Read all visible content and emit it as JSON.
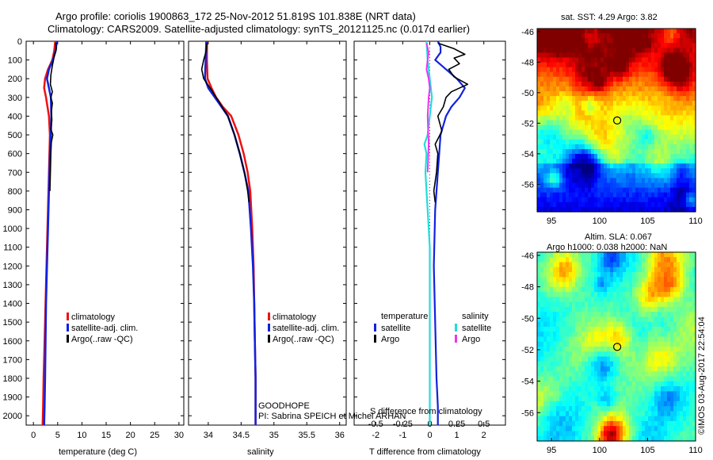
{
  "title_line1": "Argo profile: coriolis 1900863_172 25-Nov-2012 51.819S 101.838E (NRT data)",
  "title_line2": "Climatology: CARS2009. Satellite-adjusted climatology: synTS_20121125.nc (0.017d earlier)",
  "colors": {
    "climatology": "#ee1111",
    "satellite": "#1122dd",
    "argo": "#000000",
    "sat_salinity": "#22dddd",
    "argo_salinity": "#ee33ee"
  },
  "chart_data": [
    {
      "type": "line",
      "name": "temperature-profile",
      "xlabel": "temperature (deg C)",
      "ylabel": "",
      "xlim": [
        -1.5,
        31
      ],
      "ylim": [
        2050,
        0
      ],
      "xticks": [
        0,
        5,
        10,
        15,
        20,
        25,
        30
      ],
      "yticks": [
        0,
        100,
        200,
        300,
        400,
        500,
        600,
        700,
        800,
        900,
        1000,
        1100,
        1200,
        1300,
        1400,
        1500,
        1600,
        1700,
        1800,
        1900,
        2000
      ],
      "legend": [
        "climatology",
        "satellite-adj. clim.",
        "Argo(..raw -QC)"
      ],
      "series": [
        {
          "name": "climatology",
          "x": [
            4.5,
            4.3,
            3.9,
            3.0,
            2.4,
            2.2,
            2.6,
            3.2,
            3.4,
            3.3,
            3.1,
            2.9,
            2.7,
            2.5,
            2.3,
            2.1,
            2.0,
            1.9
          ],
          "y": [
            0,
            50,
            100,
            150,
            200,
            250,
            300,
            400,
            500,
            600,
            800,
            1000,
            1200,
            1400,
            1600,
            1800,
            1950,
            2050
          ]
        },
        {
          "name": "satellite-adj. clim.",
          "x": [
            4.8,
            4.6,
            4.0,
            3.2,
            2.8,
            3.2,
            3.6,
            3.7,
            3.6,
            3.4,
            3.2,
            3.0,
            2.8,
            2.6,
            2.5,
            2.4,
            2.3,
            2.2
          ],
          "y": [
            0,
            50,
            100,
            150,
            200,
            250,
            300,
            400,
            500,
            600,
            800,
            1000,
            1200,
            1400,
            1600,
            1800,
            1950,
            2050
          ]
        },
        {
          "name": "Argo",
          "x": [
            4.6,
            4.7,
            4.3,
            3.9,
            3.6,
            3.5,
            3.9,
            3.6,
            3.9,
            3.7,
            3.8,
            3.6,
            4.0,
            3.7,
            3.6,
            3.5,
            3.4
          ],
          "y": [
            10,
            40,
            80,
            130,
            180,
            230,
            270,
            300,
            330,
            380,
            420,
            470,
            500,
            540,
            600,
            700,
            800
          ]
        }
      ]
    },
    {
      "type": "line",
      "name": "salinity-profile",
      "xlabel": "salinity",
      "ylabel": "",
      "xlim": [
        33.7,
        36.1
      ],
      "ylim": [
        2050,
        0
      ],
      "xticks": [
        34,
        34.5,
        35,
        35.5,
        36
      ],
      "xticklabels": [
        "34",
        "34.5",
        "35",
        "35.5",
        "36"
      ],
      "legend": [
        "climatology",
        "satellite-adj. clim.",
        "Argo(..raw -QC)"
      ],
      "annotation": [
        "GOODHOPE",
        "PI: Sabrina SPEICH et Michel ARHAN"
      ],
      "series": [
        {
          "name": "climatology",
          "x": [
            33.98,
            33.98,
            33.99,
            34.05,
            34.12,
            34.22,
            34.35,
            34.46,
            34.54,
            34.6,
            34.64,
            34.67,
            34.69,
            34.7,
            34.71,
            34.72,
            34.72
          ],
          "y": [
            0,
            100,
            200,
            250,
            300,
            350,
            400,
            500,
            600,
            700,
            800,
            1000,
            1200,
            1400,
            1600,
            1800,
            2050
          ]
        },
        {
          "name": "satellite-adj. clim.",
          "x": [
            33.97,
            33.96,
            33.95,
            34.0,
            34.1,
            34.2,
            34.3,
            34.4,
            34.48,
            34.55,
            34.61,
            34.65,
            34.68,
            34.7,
            34.71,
            34.72,
            34.72
          ],
          "y": [
            0,
            100,
            200,
            250,
            300,
            350,
            400,
            500,
            600,
            700,
            800,
            1000,
            1200,
            1400,
            1600,
            1800,
            2050
          ]
        },
        {
          "name": "Argo",
          "x": [
            33.98,
            33.97,
            33.93,
            33.9,
            33.93,
            33.99,
            34.05,
            34.1,
            34.16,
            34.21,
            34.3,
            34.4,
            34.48,
            34.55,
            34.6,
            34.62
          ],
          "y": [
            10,
            50,
            100,
            150,
            200,
            230,
            260,
            290,
            320,
            350,
            400,
            500,
            600,
            700,
            800,
            860
          ]
        }
      ]
    },
    {
      "type": "line",
      "name": "difference-profile",
      "xlabel": "T difference from climatology",
      "x2label": "S difference from climatology",
      "xlim": [
        -2.8,
        2.8
      ],
      "ylim": [
        2050,
        0
      ],
      "xticks": [
        -2,
        -1,
        0,
        1,
        2
      ],
      "x2ticks": [
        -0.5,
        -0.25,
        0,
        0.25,
        0.5
      ],
      "x2ticklabels": [
        "-0.5",
        "-0.25",
        "0",
        "0.25",
        "0.5"
      ],
      "legend_groups": [
        {
          "title": "temperature",
          "items": [
            "satellite",
            "Argo"
          ]
        },
        {
          "title": "salinity",
          "items": [
            "satellite",
            "Argo"
          ]
        }
      ],
      "series": [
        {
          "name": "temperature satellite",
          "x": [
            0.3,
            0.4,
            0.4,
            0.2,
            0.6,
            1.0,
            1.3,
            1.1,
            0.8,
            0.6,
            0.4,
            0.3,
            0.2,
            0.15,
            0.2,
            0.25,
            0.3,
            0.3
          ],
          "y": [
            0,
            30,
            60,
            100,
            150,
            200,
            250,
            300,
            350,
            400,
            500,
            700,
            900,
            1200,
            1500,
            1800,
            1950,
            2050
          ]
        },
        {
          "name": "temperature Argo",
          "x": [
            0.3,
            0.9,
            1.3,
            0.9,
            1.1,
            0.7,
            0.9,
            1.4,
            0.8,
            0.6,
            0.5,
            0.3,
            0.45,
            0.2,
            0.3,
            0.25,
            0.15,
            0.2
          ],
          "y": [
            10,
            40,
            70,
            90,
            120,
            150,
            190,
            230,
            270,
            300,
            350,
            400,
            480,
            550,
            600,
            700,
            800,
            860
          ]
        },
        {
          "name": "salinity satellite",
          "x": [
            -0.03,
            -0.02,
            0.0,
            0.02,
            0.0,
            -0.02,
            -0.05,
            -0.03,
            -0.04,
            -0.02,
            0.0,
            0.0,
            0.0,
            0.0,
            0.0,
            0.0
          ],
          "y": [
            0,
            100,
            200,
            300,
            400,
            500,
            550,
            600,
            700,
            900,
            1100,
            1300,
            1500,
            1700,
            1900,
            2050
          ]
        },
        {
          "name": "salinity Argo",
          "x": [
            -0.03,
            -0.01,
            -0.02,
            -0.03,
            -0.01,
            0.0,
            -0.01,
            -0.02,
            -0.01,
            -0.02
          ],
          "y": [
            10,
            60,
            100,
            150,
            200,
            250,
            300,
            400,
            550,
            700
          ]
        }
      ]
    },
    {
      "type": "heatmap",
      "name": "sst-map",
      "title": "sat. SST: 4.29 Argo: 3.82",
      "xlim": [
        93.5,
        110
      ],
      "ylim": [
        -57.8,
        -45.8
      ],
      "xticks": [
        95,
        100,
        105,
        110
      ],
      "yticks": [
        -46,
        -48,
        -50,
        -52,
        -54,
        -56
      ],
      "marker": {
        "lon": 101.838,
        "lat": -51.819
      }
    },
    {
      "type": "heatmap",
      "name": "sla-map",
      "title": "Altim. SLA: 0.067",
      "subtitle": "Argo h1000: 0.038 h2000: NaN",
      "xlim": [
        93.5,
        110
      ],
      "ylim": [
        -57.8,
        -45.8
      ],
      "xticks": [
        95,
        100,
        105,
        110
      ],
      "yticks": [
        -46,
        -48,
        -50,
        -52,
        -54,
        -56
      ],
      "marker": {
        "lon": 101.838,
        "lat": -51.819
      }
    }
  ],
  "credit": "©IMOS 03-Aug-2017 22:54:04"
}
